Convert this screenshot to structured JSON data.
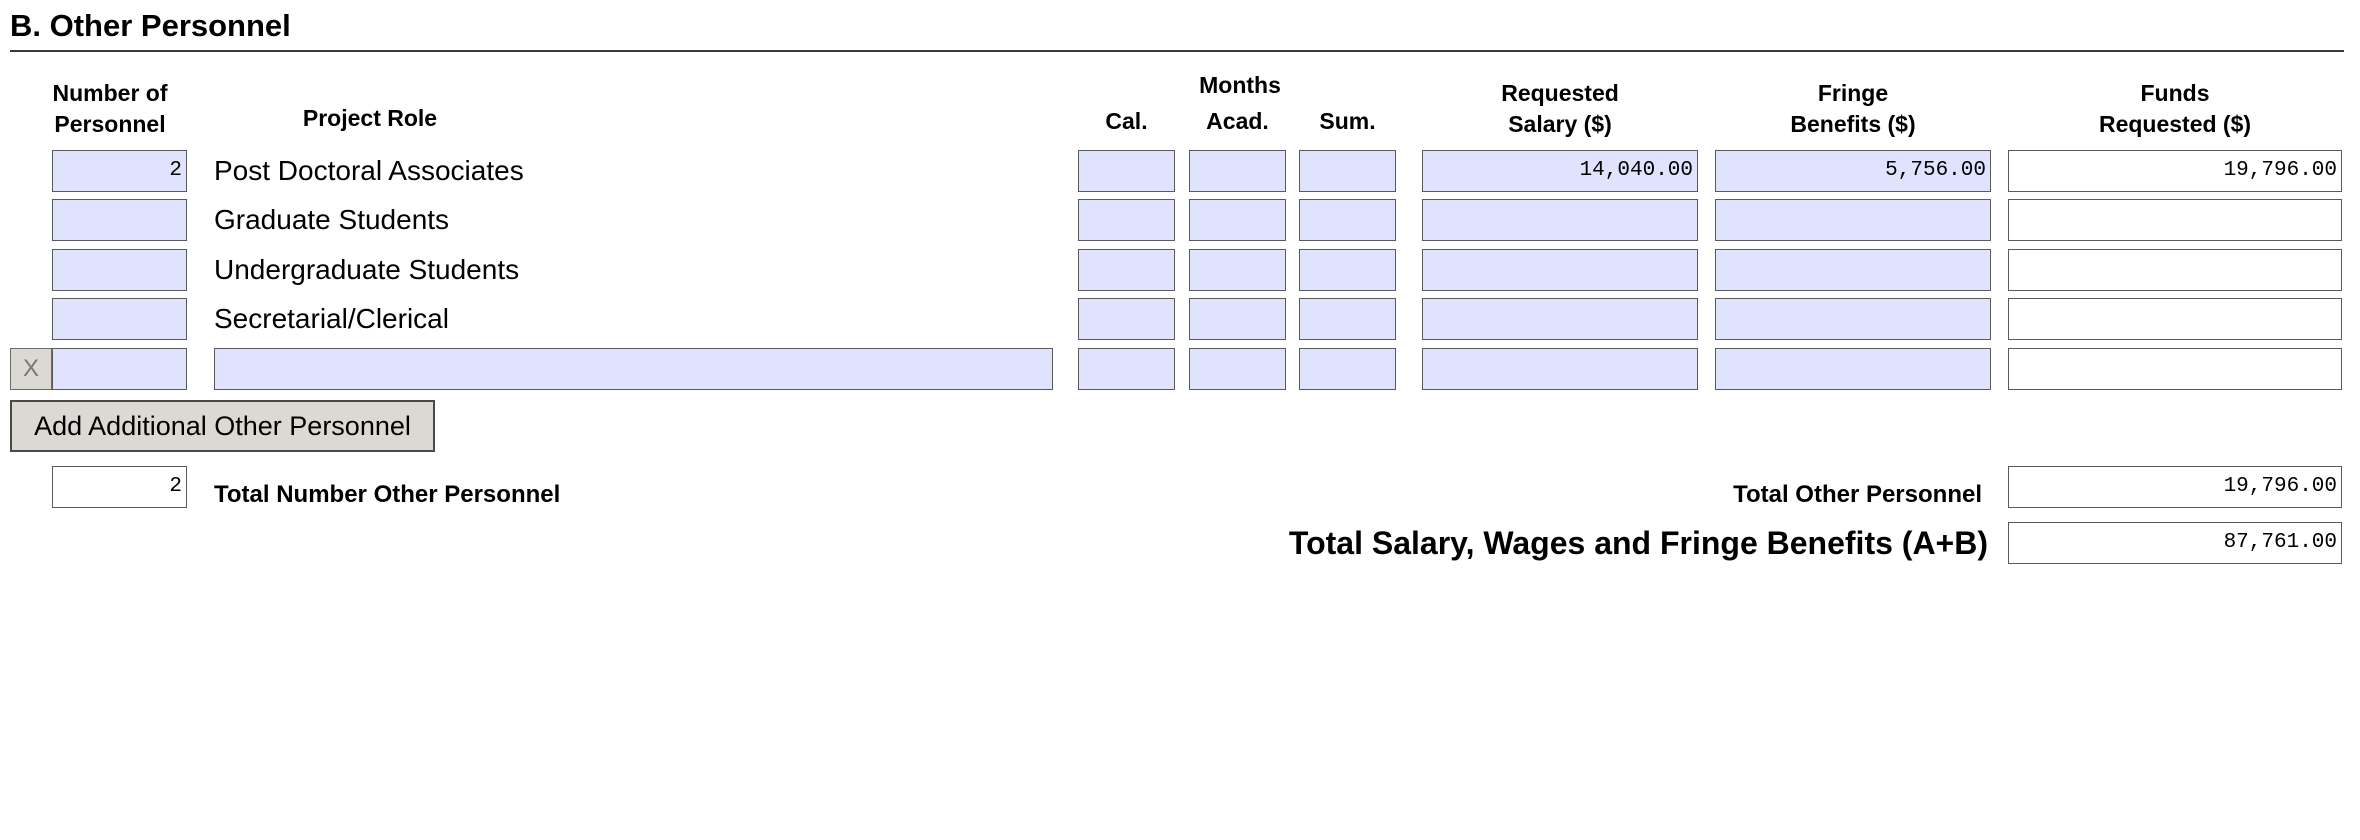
{
  "section": {
    "title": "B. Other Personnel"
  },
  "headers": {
    "number_line1": "Number of",
    "number_line2": "Personnel",
    "project_role": "Project Role",
    "months": "Months",
    "cal": "Cal.",
    "acad": "Acad.",
    "sum": "Sum.",
    "salary_line1": "Requested",
    "salary_line2": "Salary ($)",
    "fringe_line1": "Fringe",
    "fringe_line2": "Benefits ($)",
    "funds_line1": "Funds",
    "funds_line2": "Requested ($)"
  },
  "rows": [
    {
      "number": "2",
      "role": "Post Doctoral Associates",
      "cal": "",
      "acad": "",
      "sum": "",
      "salary": "14,040.00",
      "fringe": "5,756.00",
      "funds": "19,796.00"
    },
    {
      "number": "",
      "role": "Graduate Students",
      "cal": "",
      "acad": "",
      "sum": "",
      "salary": "",
      "fringe": "",
      "funds": ""
    },
    {
      "number": "",
      "role": "Undergraduate Students",
      "cal": "",
      "acad": "",
      "sum": "",
      "salary": "",
      "fringe": "",
      "funds": ""
    },
    {
      "number": "",
      "role": "Secretarial/Clerical",
      "cal": "",
      "acad": "",
      "sum": "",
      "salary": "",
      "fringe": "",
      "funds": ""
    },
    {
      "number": "",
      "role": "",
      "cal": "",
      "acad": "",
      "sum": "",
      "salary": "",
      "fringe": "",
      "funds": ""
    }
  ],
  "delete_button_label": "X",
  "add_button_label": "Add Additional Other Personnel",
  "totals": {
    "number_value": "2",
    "number_label": "Total Number Other Personnel",
    "other_label": "Total Other Personnel",
    "other_value": "19,796.00",
    "grand_label": "Total Salary, Wages and Fringe Benefits (A+B)",
    "grand_value": "87,761.00"
  }
}
